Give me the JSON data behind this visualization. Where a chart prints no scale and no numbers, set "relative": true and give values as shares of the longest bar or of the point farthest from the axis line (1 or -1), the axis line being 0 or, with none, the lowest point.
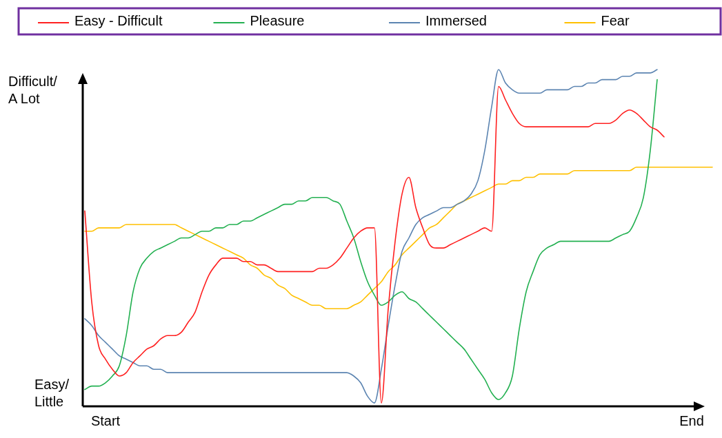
{
  "chart_data": {
    "type": "line",
    "relative": true,
    "legend": "top",
    "marker": "none",
    "line_style": "solid",
    "grid": false,
    "categories": [
      null,
      null,
      null,
      "Start",
      null,
      null,
      null,
      null,
      null,
      null,
      null,
      null,
      null,
      null,
      null,
      null,
      null,
      null,
      null,
      null,
      null,
      null,
      null,
      null,
      null,
      null,
      null,
      null,
      null,
      null,
      null,
      null,
      null,
      null,
      null,
      null,
      null,
      null,
      null,
      null,
      null,
      null,
      null,
      null,
      null,
      null,
      null,
      null,
      null,
      null,
      null,
      null,
      null,
      null,
      null,
      null,
      null,
      null,
      null,
      null,
      null,
      null,
      null,
      null,
      null,
      null,
      null,
      null,
      null,
      null,
      null,
      null,
      null,
      null,
      null,
      null,
      null,
      null,
      null,
      null,
      null,
      null,
      null,
      null,
      null,
      null,
      null,
      null,
      "End",
      null,
      null,
      null
    ],
    "annotations": [
      "Difficult/ A Lot",
      "Easy/ Little"
    ],
    "series": [
      {
        "name": "Easy - Difficult",
        "color": "#ff2020",
        "values": [
          0.58,
          0.31,
          0.18,
          0.14,
          0.11,
          0.09,
          0.1,
          0.13,
          0.15,
          0.17,
          0.18,
          0.2,
          0.21,
          0.21,
          0.22,
          0.25,
          0.28,
          0.34,
          0.39,
          0.42,
          0.44,
          0.44,
          0.44,
          0.43,
          0.43,
          0.42,
          0.42,
          0.41,
          0.4,
          0.4,
          0.4,
          0.4,
          0.4,
          0.4,
          0.41,
          0.41,
          0.42,
          0.44,
          0.47,
          0.5,
          0.52,
          0.53,
          0.53,
          0.01,
          0.29,
          0.49,
          0.63,
          0.68,
          0.59,
          0.53,
          0.48,
          0.47,
          0.47,
          0.48,
          0.49,
          0.5,
          0.51,
          0.52,
          0.53,
          0.52,
          0.95,
          0.91,
          0.87,
          0.84,
          0.83,
          0.83,
          0.83,
          0.83,
          0.83,
          0.83,
          0.83,
          0.83,
          0.83,
          0.83,
          0.84,
          0.84,
          0.84,
          0.85,
          0.87,
          0.88,
          0.87,
          0.85,
          0.83,
          0.82,
          0.8,
          null,
          null,
          null,
          null,
          null,
          null,
          null
        ]
      },
      {
        "name": "Pleasure",
        "color": "#22b050",
        "values": [
          0.05,
          0.06,
          0.06,
          0.07,
          0.09,
          0.12,
          0.21,
          0.34,
          0.41,
          0.44,
          0.46,
          0.47,
          0.48,
          0.49,
          0.5,
          0.5,
          0.51,
          0.52,
          0.52,
          0.53,
          0.53,
          0.54,
          0.54,
          0.55,
          0.55,
          0.56,
          0.57,
          0.58,
          0.59,
          0.6,
          0.6,
          0.61,
          0.61,
          0.62,
          0.62,
          0.62,
          0.61,
          0.6,
          0.55,
          0.5,
          0.43,
          0.37,
          0.33,
          0.3,
          0.31,
          0.33,
          0.34,
          0.32,
          0.31,
          0.29,
          0.27,
          0.25,
          0.23,
          0.21,
          0.19,
          0.17,
          0.14,
          0.11,
          0.08,
          0.04,
          0.02,
          0.04,
          0.09,
          0.23,
          0.34,
          0.4,
          0.45,
          0.47,
          0.48,
          0.49,
          0.49,
          0.49,
          0.49,
          0.49,
          0.49,
          0.49,
          0.49,
          0.5,
          0.51,
          0.52,
          0.56,
          0.62,
          0.76,
          0.97,
          null,
          null,
          null,
          null,
          null,
          null,
          null,
          null
        ]
      },
      {
        "name": "Immersed",
        "color": "#5b84b1",
        "values": [
          0.26,
          0.24,
          0.21,
          0.19,
          0.17,
          0.15,
          0.14,
          0.13,
          0.12,
          0.12,
          0.11,
          0.11,
          0.1,
          0.1,
          0.1,
          0.1,
          0.1,
          0.1,
          0.1,
          0.1,
          0.1,
          0.1,
          0.1,
          0.1,
          0.1,
          0.1,
          0.1,
          0.1,
          0.1,
          0.1,
          0.1,
          0.1,
          0.1,
          0.1,
          0.1,
          0.1,
          0.1,
          0.1,
          0.1,
          0.09,
          0.07,
          0.03,
          0.01,
          0.11,
          0.24,
          0.36,
          0.46,
          0.5,
          0.54,
          0.56,
          0.57,
          0.58,
          0.59,
          0.59,
          0.6,
          0.61,
          0.63,
          0.67,
          0.76,
          0.89,
          1.0,
          0.96,
          0.94,
          0.93,
          0.93,
          0.93,
          0.93,
          0.94,
          0.94,
          0.94,
          0.94,
          0.95,
          0.95,
          0.96,
          0.96,
          0.97,
          0.97,
          0.97,
          0.98,
          0.98,
          0.99,
          0.99,
          0.99,
          1.0,
          null,
          null,
          null,
          null,
          null,
          null,
          null,
          null
        ]
      },
      {
        "name": "Fear",
        "color": "#ffc000",
        "values": [
          0.52,
          0.52,
          0.53,
          0.53,
          0.53,
          0.53,
          0.54,
          0.54,
          0.54,
          0.54,
          0.54,
          0.54,
          0.54,
          0.54,
          0.53,
          0.52,
          0.51,
          0.5,
          0.49,
          0.48,
          0.47,
          0.46,
          0.45,
          0.44,
          0.42,
          0.41,
          0.39,
          0.38,
          0.36,
          0.35,
          0.33,
          0.32,
          0.31,
          0.3,
          0.3,
          0.29,
          0.29,
          0.29,
          0.29,
          0.3,
          0.31,
          0.33,
          0.35,
          0.37,
          0.4,
          0.42,
          0.45,
          0.47,
          0.49,
          0.51,
          0.53,
          0.54,
          0.56,
          0.58,
          0.6,
          0.61,
          0.62,
          0.63,
          0.64,
          0.65,
          0.66,
          0.66,
          0.67,
          0.67,
          0.68,
          0.68,
          0.69,
          0.69,
          0.69,
          0.69,
          0.69,
          0.7,
          0.7,
          0.7,
          0.7,
          0.7,
          0.7,
          0.7,
          0.7,
          0.7,
          0.71,
          0.71,
          0.71,
          0.71,
          0.71,
          0.71,
          0.71,
          0.71,
          0.71,
          0.71,
          0.71,
          0.71
        ]
      }
    ]
  }
}
